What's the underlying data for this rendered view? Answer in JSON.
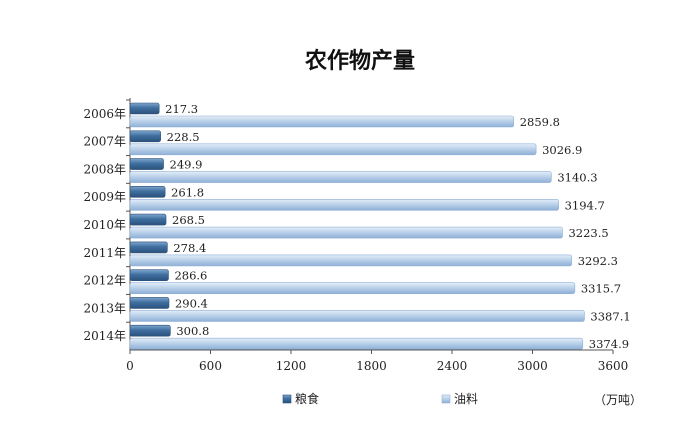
{
  "chart_data": {
    "type": "bar",
    "orientation": "horizontal",
    "title": "农作物产量",
    "categories": [
      "2006年",
      "2007年",
      "2008年",
      "2009年",
      "2010年",
      "2011年",
      "2012年",
      "2013年",
      "2014年"
    ],
    "series": [
      {
        "name": "粮食",
        "values": [
          217.3,
          228.5,
          249.9,
          261.8,
          268.5,
          278.4,
          286.6,
          290.4,
          300.8
        ],
        "color": "#3f6f9f"
      },
      {
        "name": "油料",
        "values": [
          2859.8,
          3026.9,
          3140.3,
          3194.7,
          3223.5,
          3292.3,
          3315.7,
          3387.1,
          3374.9
        ],
        "color": "#a9c3e0"
      }
    ],
    "xlim": [
      0,
      3600
    ],
    "xticks": [
      0,
      600,
      1200,
      1800,
      2400,
      3000,
      3600
    ],
    "unit": "（万吨）",
    "legend": "bottom",
    "grid": false
  }
}
